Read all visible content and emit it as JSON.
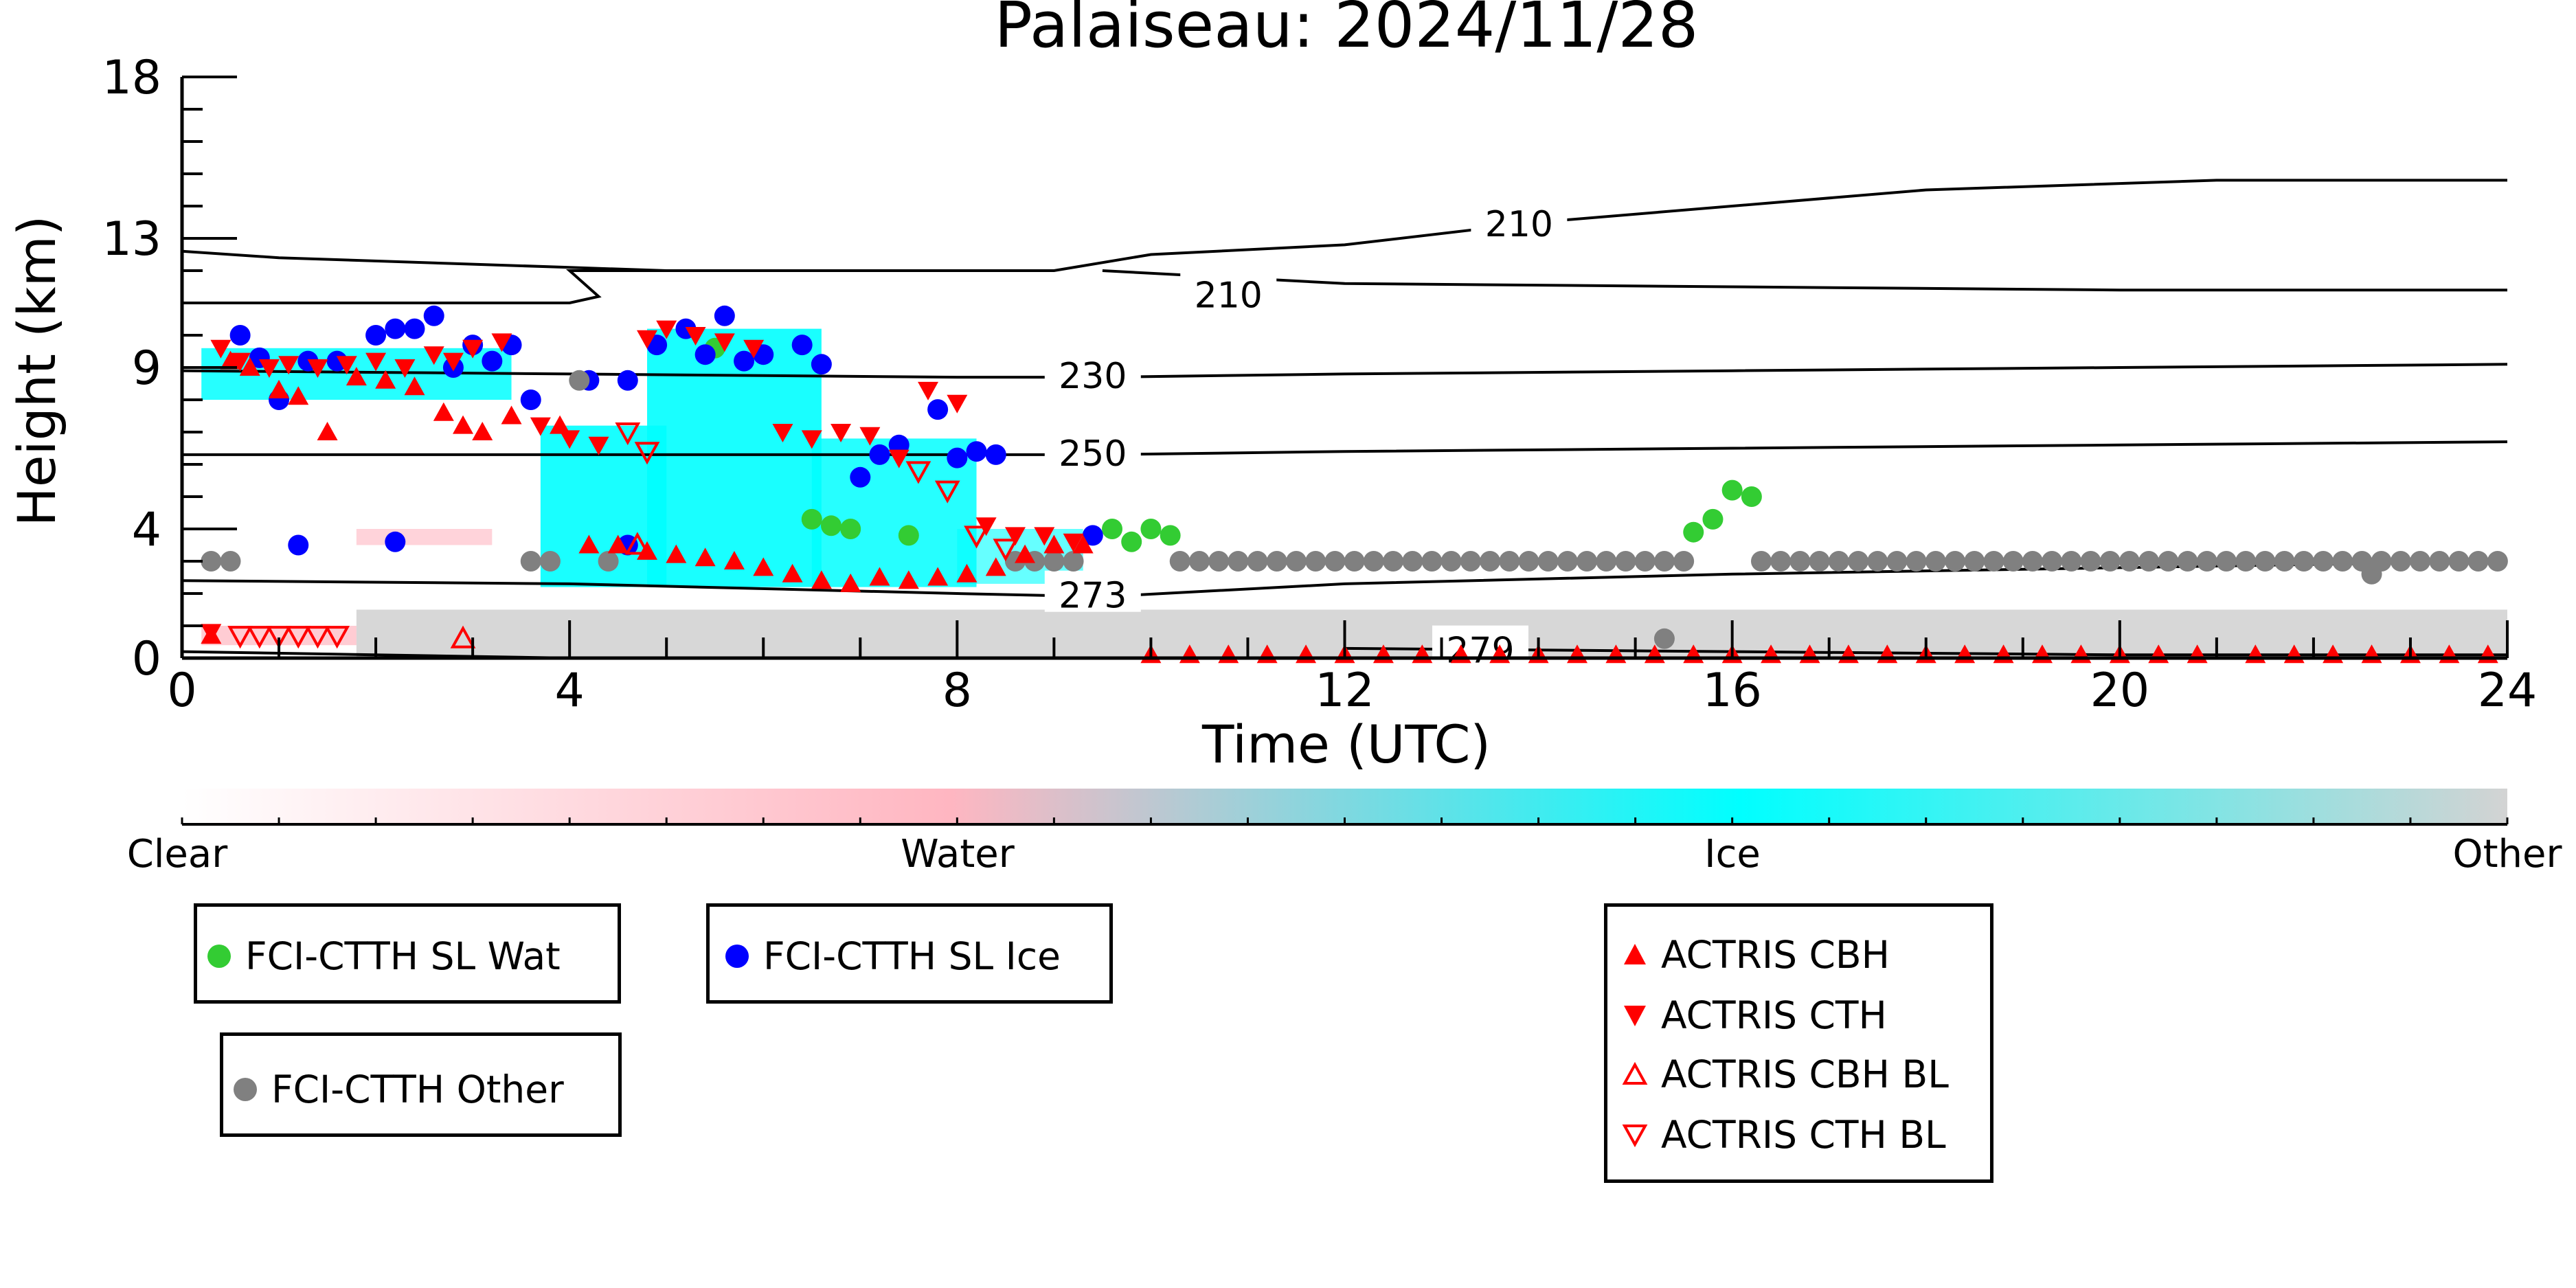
{
  "chart_data": {
    "type": "scatter",
    "title": "Palaiseau: 2024/11/28",
    "xlabel": "Time (UTC)",
    "ylabel": "Height (km)",
    "xlim": [
      0,
      24
    ],
    "ylim": [
      0,
      18
    ],
    "x_ticks": [
      0,
      4,
      8,
      12,
      16,
      20,
      24
    ],
    "y_ticks": [
      0,
      4,
      9,
      13,
      18
    ],
    "colorbar": {
      "labels": [
        "Clear",
        "Water",
        "Ice",
        "Other"
      ],
      "colors": [
        "#ffffff",
        "#ffb6c1",
        "#00ffff",
        "#d3d3d3"
      ]
    },
    "contours": [
      {
        "label": "210",
        "points": [
          [
            0,
            12.6
          ],
          [
            1,
            12.4
          ],
          [
            3,
            12.2
          ],
          [
            4,
            12.1
          ],
          [
            5,
            12.0
          ],
          [
            7,
            12.0
          ],
          [
            9,
            12.0
          ],
          [
            10,
            12.5
          ],
          [
            12,
            12.8
          ],
          [
            14,
            13.5
          ],
          [
            18,
            14.5
          ],
          [
            21,
            14.8
          ],
          [
            24,
            14.8
          ]
        ]
      },
      {
        "label": "210",
        "points": [
          [
            0,
            11.0
          ],
          [
            2,
            11.0
          ],
          [
            4,
            11.0
          ],
          [
            4.3,
            11.2
          ],
          [
            4.0,
            12.0
          ],
          [
            6,
            12.0
          ],
          [
            7,
            12.0
          ],
          [
            9,
            12.0
          ]
        ]
      },
      {
        "label": "210",
        "points": [
          [
            9.5,
            12.0
          ],
          [
            12,
            11.6
          ],
          [
            16,
            11.5
          ],
          [
            20,
            11.4
          ],
          [
            24,
            11.4
          ]
        ]
      },
      {
        "label": "230",
        "points": [
          [
            0,
            8.9
          ],
          [
            4,
            8.8
          ],
          [
            8,
            8.7
          ],
          [
            9.5,
            8.7
          ],
          [
            12,
            8.8
          ],
          [
            16,
            8.9
          ],
          [
            20,
            9.0
          ],
          [
            24,
            9.1
          ]
        ]
      },
      {
        "label": "250",
        "points": [
          [
            0,
            6.3
          ],
          [
            4,
            6.3
          ],
          [
            8,
            6.3
          ],
          [
            9.5,
            6.3
          ],
          [
            12,
            6.4
          ],
          [
            16,
            6.5
          ],
          [
            20,
            6.6
          ],
          [
            24,
            6.7
          ]
        ]
      },
      {
        "label": "273",
        "points": [
          [
            0,
            2.4
          ],
          [
            4,
            2.3
          ],
          [
            8,
            2.0
          ],
          [
            9.5,
            1.9
          ],
          [
            12,
            2.3
          ],
          [
            16,
            2.6
          ],
          [
            20,
            2.8
          ],
          [
            24,
            3.0
          ]
        ]
      },
      {
        "label": "279",
        "points": [
          [
            0,
            0.2
          ],
          [
            4,
            0.0
          ]
        ]
      },
      {
        "label": "279",
        "points": [
          [
            12,
            0.3
          ],
          [
            16,
            0.2
          ],
          [
            20,
            0.1
          ],
          [
            24,
            0.1
          ]
        ]
      }
    ],
    "series": [
      {
        "name": "FCI-CTTH SL Wat",
        "marker": "circle",
        "color": "#33cc33",
        "x": [
          5.5,
          6.5,
          6.7,
          6.9,
          7.5,
          9.6,
          9.8,
          10.0,
          10.2,
          15.6,
          15.8,
          16.0,
          16.2
        ],
        "y": [
          9.6,
          4.3,
          4.1,
          4.0,
          3.8,
          4.0,
          3.6,
          4.0,
          3.8,
          3.9,
          4.3,
          5.2,
          5.0
        ]
      },
      {
        "name": "FCI-CTTH SL Ice",
        "marker": "circle",
        "color": "#0000ff",
        "x": [
          0.6,
          0.8,
          1.0,
          1.3,
          1.6,
          2.0,
          2.2,
          2.4,
          2.6,
          2.8,
          3.0,
          3.2,
          3.4,
          3.6,
          4.2,
          4.6,
          4.9,
          5.2,
          5.4,
          5.6,
          5.8,
          6.0,
          6.4,
          6.6,
          7.0,
          7.2,
          7.4,
          7.8,
          8.0,
          8.2,
          8.4,
          9.4,
          1.2,
          2.2,
          4.6
        ],
        "y": [
          10.0,
          9.3,
          8.0,
          9.2,
          9.2,
          10.0,
          10.2,
          10.2,
          10.6,
          9.0,
          9.7,
          9.2,
          9.7,
          8.0,
          8.6,
          8.6,
          9.7,
          10.2,
          9.4,
          10.6,
          9.2,
          9.4,
          9.7,
          9.1,
          5.6,
          6.3,
          6.6,
          7.7,
          6.2,
          6.4,
          6.3,
          3.8,
          3.5,
          3.6,
          3.5
        ]
      },
      {
        "name": "FCI-CTTH Other",
        "marker": "circle",
        "color": "#808080",
        "x": [
          0.3,
          0.5,
          4.1,
          3.6,
          3.8,
          4.4,
          8.6,
          8.8,
          9.0,
          9.2,
          10.3,
          10.5,
          10.7,
          10.9,
          11.1,
          11.3,
          11.5,
          11.7,
          11.9,
          12.1,
          12.3,
          12.5,
          12.7,
          12.9,
          13.1,
          13.3,
          13.5,
          13.7,
          13.9,
          14.1,
          14.3,
          14.5,
          14.7,
          14.9,
          15.1,
          15.3,
          15.5,
          16.3,
          16.5,
          16.7,
          16.9,
          17.1,
          17.3,
          17.5,
          17.7,
          17.9,
          18.1,
          18.3,
          18.5,
          18.7,
          18.9,
          19.1,
          19.3,
          19.5,
          19.7,
          19.9,
          20.1,
          20.3,
          20.5,
          20.7,
          20.9,
          21.1,
          21.3,
          21.5,
          21.7,
          21.9,
          22.1,
          22.3,
          22.5,
          22.7,
          22.9,
          23.1,
          23.3,
          23.5,
          23.7,
          23.9,
          15.3,
          22.6
        ],
        "y": [
          3.0,
          3.0,
          8.6,
          3.0,
          3.0,
          3.0,
          3.0,
          3.0,
          3.0,
          3.0,
          3.0,
          3.0,
          3.0,
          3.0,
          3.0,
          3.0,
          3.0,
          3.0,
          3.0,
          3.0,
          3.0,
          3.0,
          3.0,
          3.0,
          3.0,
          3.0,
          3.0,
          3.0,
          3.0,
          3.0,
          3.0,
          3.0,
          3.0,
          3.0,
          3.0,
          3.0,
          3.0,
          3.0,
          3.0,
          3.0,
          3.0,
          3.0,
          3.0,
          3.0,
          3.0,
          3.0,
          3.0,
          3.0,
          3.0,
          3.0,
          3.0,
          3.0,
          3.0,
          3.0,
          3.0,
          3.0,
          3.0,
          3.0,
          3.0,
          3.0,
          3.0,
          3.0,
          3.0,
          3.0,
          3.0,
          3.0,
          3.0,
          3.0,
          3.0,
          3.0,
          3.0,
          3.0,
          3.0,
          3.0,
          3.0,
          3.0,
          0.6,
          2.6
        ]
      },
      {
        "name": "ACTRIS CBH",
        "marker": "triangle-up",
        "color": "#ff0000",
        "filled": true,
        "x": [
          0.5,
          0.7,
          1.0,
          1.2,
          1.5,
          1.8,
          2.1,
          2.4,
          2.7,
          2.9,
          3.1,
          3.4,
          3.9,
          4.2,
          4.5,
          4.8,
          5.1,
          5.4,
          5.7,
          6.0,
          6.3,
          6.6,
          6.9,
          7.2,
          7.5,
          7.8,
          8.1,
          8.4,
          8.7,
          9.0,
          9.3,
          0.3,
          10.0,
          10.4,
          10.8,
          11.2,
          11.6,
          12.0,
          12.4,
          12.8,
          13.2,
          13.6,
          14.0,
          14.4,
          14.8,
          15.2,
          15.6,
          16.0,
          16.4,
          16.8,
          17.2,
          17.6,
          18.0,
          18.4,
          18.8,
          19.2,
          19.6,
          20.0,
          20.4,
          20.8,
          21.4,
          21.8,
          22.2,
          22.6,
          23.0,
          23.4,
          23.8
        ],
        "y": [
          9.2,
          9.0,
          8.3,
          8.1,
          7.0,
          8.7,
          8.6,
          8.4,
          7.6,
          7.2,
          7.0,
          7.5,
          7.2,
          3.5,
          3.5,
          3.3,
          3.2,
          3.1,
          3.0,
          2.8,
          2.6,
          2.4,
          2.3,
          2.5,
          2.4,
          2.5,
          2.6,
          2.8,
          3.2,
          3.5,
          3.5,
          0.7,
          0.1,
          0.1,
          0.1,
          0.1,
          0.1,
          0.1,
          0.1,
          0.1,
          0.1,
          0.1,
          0.1,
          0.1,
          0.1,
          0.1,
          0.1,
          0.1,
          0.1,
          0.1,
          0.1,
          0.1,
          0.1,
          0.1,
          0.1,
          0.1,
          0.1,
          0.1,
          0.1,
          0.1,
          0.1,
          0.1,
          0.1,
          0.1,
          0.1,
          0.1,
          0.1
        ]
      },
      {
        "name": "ACTRIS CTH",
        "marker": "triangle-down",
        "color": "#ff0000",
        "filled": true,
        "x": [
          0.4,
          0.6,
          0.9,
          1.1,
          1.4,
          1.7,
          2.0,
          2.3,
          2.6,
          2.8,
          3.0,
          3.3,
          3.7,
          4.0,
          4.3,
          4.8,
          5.0,
          5.3,
          5.6,
          5.9,
          6.2,
          6.5,
          6.8,
          7.1,
          7.4,
          7.7,
          8.0,
          8.3,
          8.6,
          8.9,
          9.2,
          0.3
        ],
        "y": [
          9.6,
          9.2,
          9.0,
          9.1,
          9.0,
          9.1,
          9.2,
          9.0,
          9.4,
          9.2,
          9.6,
          9.8,
          7.2,
          6.8,
          6.6,
          9.9,
          10.2,
          10.0,
          9.8,
          9.6,
          7.0,
          6.8,
          7.0,
          6.9,
          6.2,
          8.3,
          7.9,
          4.1,
          3.8,
          3.8,
          3.6,
          0.8
        ]
      },
      {
        "name": "ACTRIS CBH BL",
        "marker": "triangle-up",
        "color": "#ff0000",
        "filled": false,
        "x": [
          2.9,
          4.7
        ],
        "y": [
          0.6,
          3.5
        ]
      },
      {
        "name": "ACTRIS CTH BL",
        "marker": "triangle-down",
        "color": "#ff0000",
        "filled": false,
        "x": [
          0.6,
          0.8,
          1.0,
          1.2,
          1.4,
          1.6,
          4.6,
          4.8,
          7.6,
          7.9,
          8.2,
          8.5
        ],
        "y": [
          0.7,
          0.7,
          0.7,
          0.7,
          0.7,
          0.7,
          7.0,
          6.4,
          5.8,
          5.2,
          3.8,
          3.4
        ]
      }
    ]
  },
  "legend": {
    "wat": {
      "label": "FCI-CTTH SL Wat",
      "color": "#33cc33"
    },
    "ice": {
      "label": "FCI-CTTH SL Ice",
      "color": "#0000ff"
    },
    "other": {
      "label": "FCI-CTTH Other",
      "color": "#808080"
    },
    "cbh": {
      "label": "ACTRIS CBH",
      "color": "#ff0000"
    },
    "cth": {
      "label": "ACTRIS CTH",
      "color": "#ff0000"
    },
    "cbh_bl": {
      "label": "ACTRIS CBH BL",
      "color": "#ff0000"
    },
    "cth_bl": {
      "label": "ACTRIS CTH BL",
      "color": "#ff0000"
    }
  }
}
